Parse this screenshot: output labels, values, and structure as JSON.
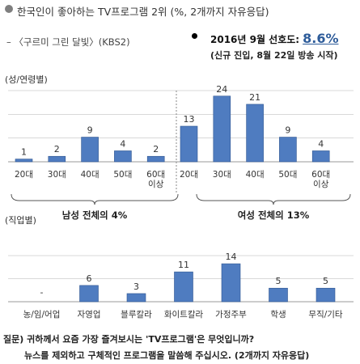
{
  "header": {
    "title": "한국인이 좋아하는 TV프로그램 2위 (%, 2개까지 자유응답)",
    "subtitle": "– 〈구르미 그린 달빛〉(KBS2)",
    "stat_label": "2016년 9월 선호도:",
    "stat_value": "8.6%",
    "stat_note": "(신규 진입, 8월 22일 방송 시작)"
  },
  "chart_data": [
    {
      "type": "bar",
      "section_label": "(성/연령별)",
      "categories": [
        "20대",
        "30대",
        "40대",
        "50대",
        "60대 이상",
        "20대",
        "30대",
        "40대",
        "50대",
        "60대 이상"
      ],
      "series": [
        {
          "values": [
            1,
            2,
            9,
            4,
            2,
            13,
            24,
            21,
            9,
            4
          ]
        }
      ],
      "group_labels": [
        "남성 전체의 4%",
        "여성 전체의 13%"
      ],
      "ylim": [
        0,
        26
      ],
      "grid": true
    },
    {
      "type": "bar",
      "section_label": "(직업별)",
      "categories": [
        "농/임/어업",
        "자영업",
        "블루칼라",
        "화이트칼라",
        "가정주부",
        "학생",
        "무직/기타"
      ],
      "series": [
        {
          "values": [
            null,
            6,
            3,
            11,
            14,
            5,
            5
          ]
        }
      ],
      "value_labels": [
        "-",
        "6",
        "3",
        "11",
        "14",
        "5",
        "5"
      ],
      "ylim": [
        0,
        17
      ],
      "grid": true
    }
  ],
  "footer": {
    "question": "질문) 귀하께서 요즘 가장 즐겨보시는 'TV프로그램'은 무엇입니까?",
    "question_cont": "뉴스를 제외하고 구체적인 프로그램을 말씀해 주십시오. (2개까지 자유응답)"
  },
  "colors": {
    "bar": "#4f7cc0",
    "bar_edge": "#2f5590",
    "gridline": "#d9d9d9",
    "stat_value": "#2e5c9a"
  }
}
